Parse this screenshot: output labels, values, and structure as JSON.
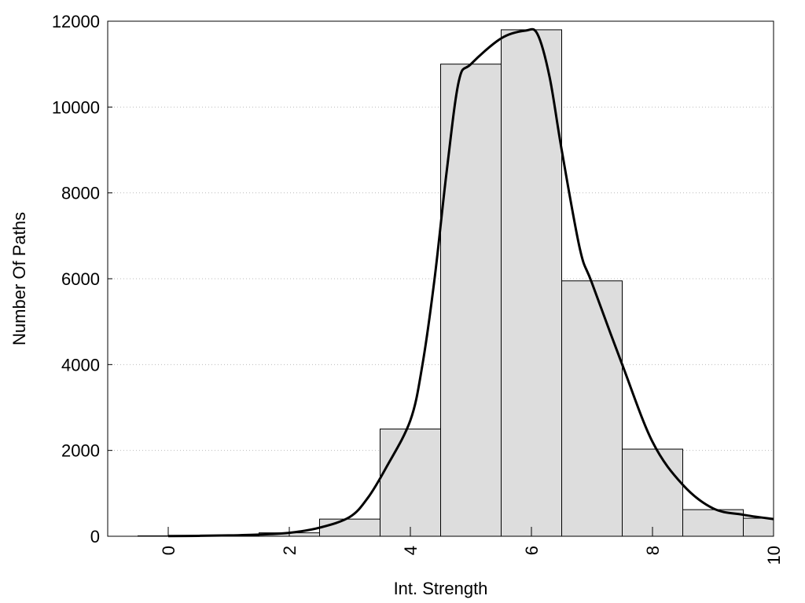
{
  "chart_data": {
    "type": "bar",
    "title": "",
    "xlabel": "Int. Strength",
    "ylabel": "Number Of Paths",
    "xlim": [
      -1,
      10
    ],
    "ylim": [
      0,
      12000
    ],
    "x_ticks": [
      0,
      2,
      4,
      6,
      8,
      10
    ],
    "x_tick_labels": [
      "0",
      "2",
      "4",
      "6",
      "8",
      "10"
    ],
    "y_ticks": [
      0,
      2000,
      4000,
      6000,
      8000,
      10000,
      12000
    ],
    "y_tick_labels": [
      "0",
      "2000",
      "4000",
      "6000",
      "8000",
      "10000",
      "12000"
    ],
    "grid": "horizontal dotted",
    "bar_width": 1,
    "bar_fill": "#dddddd",
    "bar_stroke": "#000000",
    "categories": [
      0,
      1,
      2,
      3,
      4,
      5,
      6,
      7,
      8,
      9,
      10
    ],
    "values": [
      10,
      20,
      80,
      400,
      2500,
      11000,
      11800,
      5950,
      2030,
      620,
      420
    ],
    "series": [
      {
        "type": "line",
        "color": "#000000",
        "x": [
          0,
          0.5,
          1,
          1.5,
          2,
          2.5,
          3,
          3.3,
          3.6,
          4,
          4.2,
          4.4,
          4.6,
          4.8,
          5,
          5.5,
          5.9,
          6.1,
          6.3,
          6.5,
          6.8,
          7,
          7.5,
          8,
          8.5,
          9,
          9.5,
          10
        ],
        "y": [
          5,
          10,
          20,
          40,
          80,
          200,
          450,
          900,
          1600,
          2700,
          4000,
          6000,
          8500,
          10600,
          11000,
          11600,
          11780,
          11700,
          10700,
          9000,
          6700,
          5900,
          4000,
          2200,
          1200,
          650,
          500,
          400
        ]
      }
    ]
  }
}
